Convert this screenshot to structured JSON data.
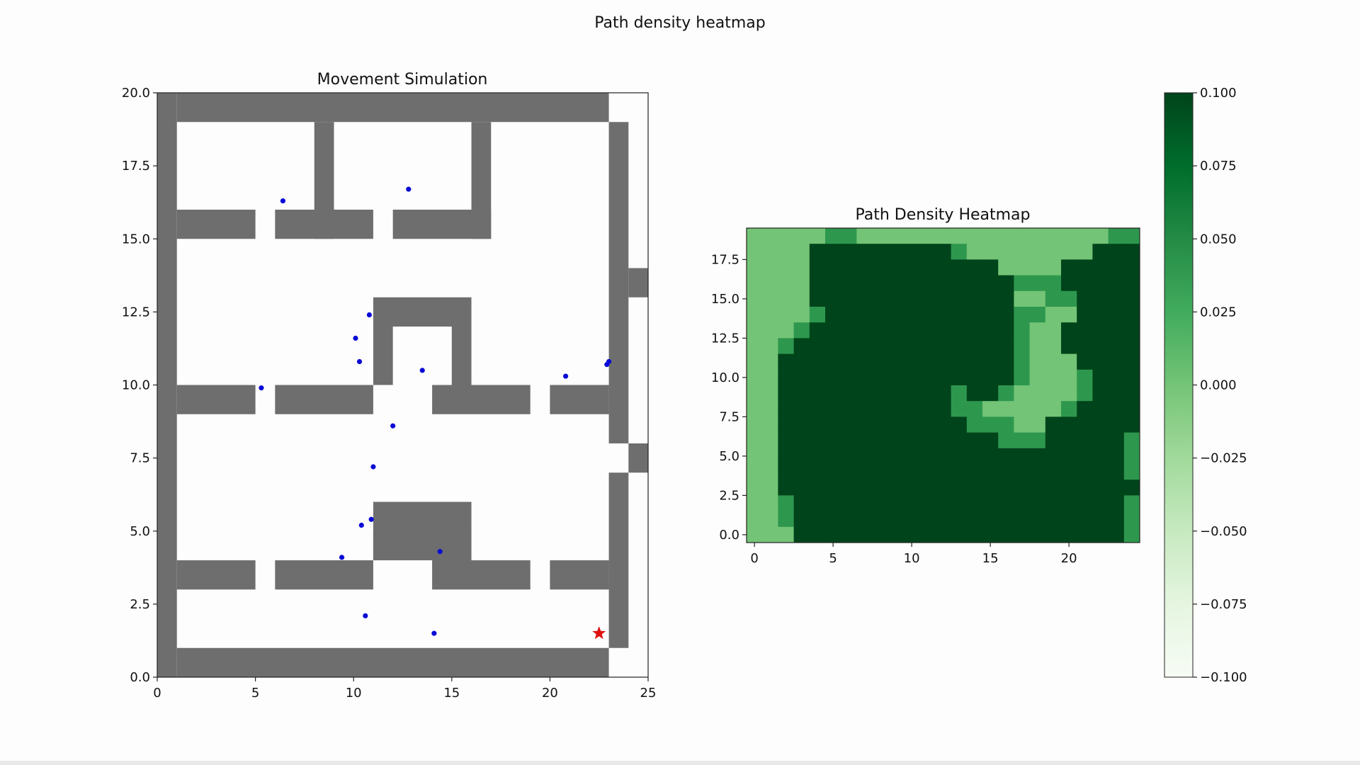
{
  "figure": {
    "suptitle": "Path density heatmap"
  },
  "chart_data": [
    {
      "type": "scatter",
      "title": "Movement Simulation",
      "xlabel": "",
      "ylabel": "",
      "xlim": [
        0,
        25
      ],
      "ylim": [
        0,
        20
      ],
      "xticks": [
        0,
        5,
        10,
        15,
        20,
        25
      ],
      "yticks": [
        0.0,
        2.5,
        5.0,
        7.5,
        10.0,
        12.5,
        15.0,
        17.5,
        20.0
      ],
      "ytick_labels": [
        "0.0",
        "2.5",
        "5.0",
        "7.5",
        "10.0",
        "12.5",
        "15.0",
        "17.5",
        "20.0"
      ],
      "grid": false,
      "walls": [
        [
          1,
          19,
          23,
          20
        ],
        [
          0,
          0,
          1,
          20
        ],
        [
          1,
          0,
          23,
          1
        ],
        [
          8,
          15,
          9,
          19
        ],
        [
          16,
          15,
          17,
          19
        ],
        [
          1,
          15,
          5,
          16
        ],
        [
          6,
          15,
          11,
          16
        ],
        [
          12,
          15,
          17,
          16
        ],
        [
          11,
          12,
          16,
          13
        ],
        [
          11,
          10,
          12,
          12
        ],
        [
          15,
          10,
          16,
          12
        ],
        [
          1,
          9,
          5,
          10
        ],
        [
          6,
          9,
          11,
          10
        ],
        [
          14,
          9,
          19,
          10
        ],
        [
          20,
          9,
          23,
          10
        ],
        [
          23,
          8,
          24,
          19
        ],
        [
          24,
          13,
          25,
          14
        ],
        [
          24,
          7,
          25,
          8
        ],
        [
          23,
          1,
          24,
          7
        ],
        [
          11,
          4,
          16,
          6
        ],
        [
          11,
          4,
          12,
          5
        ],
        [
          15,
          4,
          16,
          5
        ],
        [
          1,
          3,
          5,
          4
        ],
        [
          6,
          3,
          11,
          4
        ],
        [
          14,
          3,
          19,
          4
        ],
        [
          20,
          3,
          23,
          4
        ]
      ],
      "wall_color": "#6e6e6e",
      "agents": {
        "color": "#0a0ad6",
        "points": [
          [
            6.4,
            16.3
          ],
          [
            12.8,
            16.7
          ],
          [
            10.8,
            12.4
          ],
          [
            10.1,
            11.6
          ],
          [
            10.3,
            10.8
          ],
          [
            13.5,
            10.5
          ],
          [
            5.3,
            9.9
          ],
          [
            20.8,
            10.3
          ],
          [
            22.9,
            10.7
          ],
          [
            23.0,
            10.8
          ],
          [
            12.0,
            8.6
          ],
          [
            11.0,
            7.2
          ],
          [
            10.9,
            5.4
          ],
          [
            10.4,
            5.2
          ],
          [
            9.4,
            4.1
          ],
          [
            14.4,
            4.3
          ],
          [
            10.6,
            2.1
          ],
          [
            14.1,
            1.5
          ]
        ]
      },
      "goal": {
        "x": 22.5,
        "y": 1.5,
        "color": "#e01010",
        "marker": "star"
      }
    },
    {
      "type": "heatmap",
      "title": "Path Density Heatmap",
      "xlabel": "",
      "ylabel": "",
      "xticks": [
        0,
        5,
        10,
        15,
        20
      ],
      "yticks": [
        0.0,
        2.5,
        5.0,
        7.5,
        10.0,
        12.5,
        15.0,
        17.5
      ],
      "ytick_labels": [
        "0.0",
        "2.5",
        "5.0",
        "7.5",
        "10.0",
        "12.5",
        "15.0",
        "17.5"
      ],
      "colormap": "Greens",
      "colorbar": {
        "vmin": -0.1,
        "vmax": 0.1,
        "ticks": [
          0.1,
          0.075,
          0.05,
          0.025,
          0.0,
          -0.025,
          -0.05,
          -0.075,
          -0.1
        ],
        "tick_labels": [
          "0.100",
          "0.075",
          "0.050",
          "0.025",
          "0.000",
          "−0.025",
          "−0.050",
          "−0.075",
          "−0.100"
        ]
      },
      "rows": [
        "1111122111111111111111122",
        "1111333333333211111111333",
        "1111333333333333111133333",
        "1111333333333333322233333",
        "1111333333333333311223333",
        "1111233333333333322113333",
        "1112333333333333321133333",
        "1123333333333333321133333",
        "1133333333333333321113333",
        "1133333333333333321112333",
        "1133333333333233211112333",
        "1133333333333221111123333",
        "1133333333333322211333333",
        "1133333333333333222333332",
        "1133333333333333333333332",
        "1133333333333333333333332",
        "1133333333333333333333333",
        "1123333333333333333333332",
        "1123333333333333333333332",
        "1113333333333333333333332"
      ],
      "level_colors": {
        "1": "#73c476",
        "2": "#2e974e",
        "3": "#00441b"
      }
    }
  ]
}
